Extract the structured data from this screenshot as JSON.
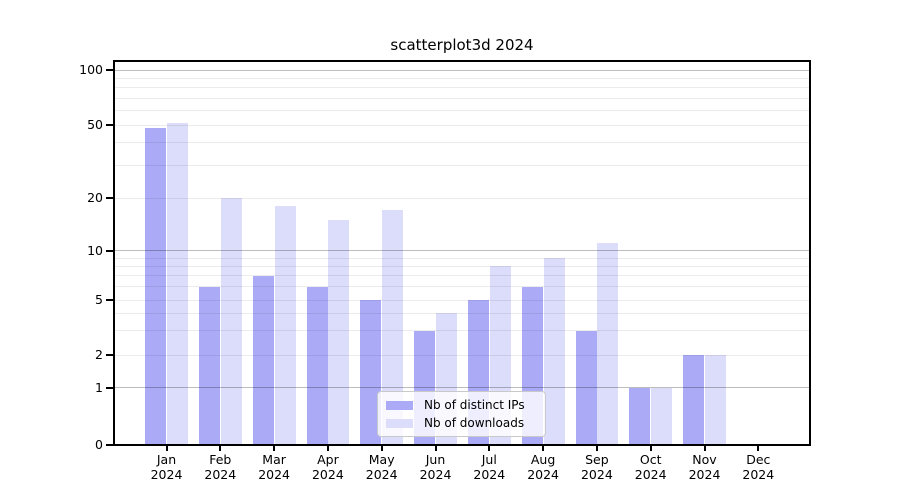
{
  "chart_data": {
    "type": "bar",
    "title": "scatterplot3d 2024",
    "categories": [
      "Jan",
      "Feb",
      "Mar",
      "Apr",
      "May",
      "Jun",
      "Jul",
      "Aug",
      "Sep",
      "Oct",
      "Nov",
      "Dec"
    ],
    "year_label": "2024",
    "series": [
      {
        "name": "Nb of distinct IPs",
        "color": "#aaaaf7",
        "values": [
          48,
          6,
          7,
          6,
          5,
          3,
          5,
          6,
          3,
          1,
          2,
          0
        ]
      },
      {
        "name": "Nb of downloads",
        "color": "#dcdcfb",
        "values": [
          51,
          20,
          18,
          15,
          17,
          4,
          8,
          9,
          11,
          1,
          2,
          0
        ]
      }
    ],
    "yscale": "log",
    "y_ticks": [
      0,
      1,
      2,
      5,
      10,
      20,
      50,
      100
    ],
    "ylim": [
      0,
      115
    ],
    "xlabel": "",
    "ylabel": "",
    "grid": {
      "orientation": "horizontal",
      "major_lines": [
        1,
        10,
        100
      ],
      "minor_lines": [
        2,
        3,
        4,
        5,
        6,
        7,
        8,
        9,
        20,
        30,
        40,
        50,
        60,
        70,
        80,
        90
      ]
    },
    "legend_position": "lower-center-inside",
    "bar_colors": {
      "distinct_ips": "#aaaaf7",
      "downloads": "#dcdcfb"
    }
  }
}
